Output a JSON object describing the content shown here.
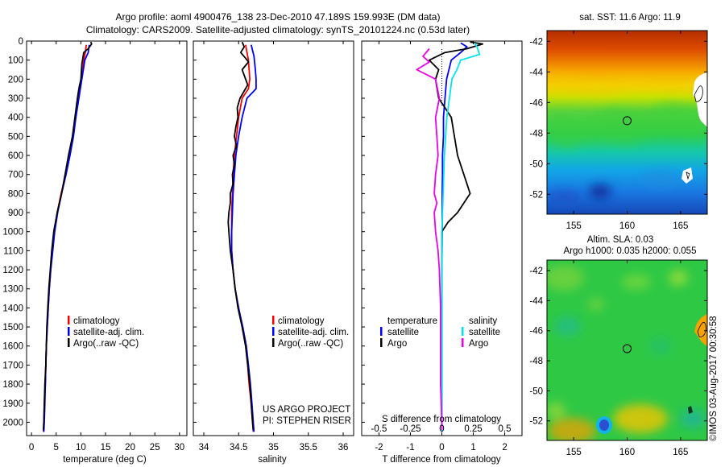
{
  "header": {
    "line1": "Argo profile: aoml 4900476_138 23-Dec-2010 47.189S 159.993E (DM data)",
    "line2": "Climatology: CARS2009. Satellite-adjusted climatology: synTS_20101224.nc (0.53d later)"
  },
  "colors": {
    "climatology": "#ff0000",
    "satellite": "#0000ff",
    "argo": "#000000",
    "satellite_s": "#00e5ee",
    "argo_s": "#ee00ee"
  },
  "credits": {
    "project": "US ARGO PROJECT",
    "pi": "PI: STEPHEN RISER",
    "stamp": "©IMOS 03-Aug-2017 00:30:58"
  },
  "chart_data": [
    {
      "type": "line",
      "xlabel": "temperature (deg C)",
      "xlim": [
        -1,
        31.5
      ],
      "xticks": [
        0,
        5,
        10,
        15,
        20,
        25,
        30
      ],
      "ylim": [
        2070,
        0
      ],
      "yticks": [
        0,
        100,
        200,
        300,
        400,
        500,
        600,
        700,
        800,
        900,
        1000,
        1100,
        1200,
        1300,
        1400,
        1500,
        1600,
        1700,
        1800,
        1900,
        2000
      ],
      "legend": [
        "climatology",
        "satellite-adj. clim.",
        "Argo(..raw -QC)"
      ],
      "series": [
        {
          "name": "climatology",
          "color": "#ff0000",
          "points": [
            [
              11.1,
              20
            ],
            [
              10.9,
              60
            ],
            [
              10.6,
              100
            ],
            [
              10.1,
              200
            ],
            [
              9.5,
              300
            ],
            [
              8.9,
              400
            ],
            [
              8.4,
              500
            ],
            [
              7.7,
              600
            ],
            [
              6.9,
              700
            ],
            [
              6.0,
              800
            ],
            [
              5.2,
              900
            ],
            [
              4.6,
              1000
            ],
            [
              4.2,
              1100
            ],
            [
              3.9,
              1200
            ],
            [
              3.6,
              1300
            ],
            [
              3.4,
              1400
            ],
            [
              3.2,
              1500
            ],
            [
              3.0,
              1600
            ],
            [
              2.9,
              1700
            ],
            [
              2.8,
              1800
            ],
            [
              2.6,
              1900
            ],
            [
              2.5,
              2000
            ],
            [
              2.4,
              2050
            ]
          ]
        },
        {
          "name": "satellite-adj. clim.",
          "color": "#0000ff",
          "points": [
            [
              11.7,
              20
            ],
            [
              11.5,
              60
            ],
            [
              10.8,
              100
            ],
            [
              10.2,
              200
            ],
            [
              9.6,
              300
            ],
            [
              9.0,
              400
            ],
            [
              8.5,
              500
            ],
            [
              7.8,
              600
            ],
            [
              7.0,
              700
            ],
            [
              6.1,
              800
            ],
            [
              5.3,
              900
            ],
            [
              4.7,
              1000
            ],
            [
              4.3,
              1100
            ],
            [
              3.9,
              1200
            ],
            [
              3.6,
              1300
            ],
            [
              3.4,
              1400
            ],
            [
              3.2,
              1500
            ],
            [
              3.0,
              1600
            ],
            [
              2.9,
              1700
            ],
            [
              2.8,
              1800
            ],
            [
              2.7,
              1900
            ],
            [
              2.6,
              2000
            ],
            [
              2.5,
              2050
            ]
          ]
        },
        {
          "name": "Argo(..raw -QC)",
          "color": "#000000",
          "points": [
            [
              12.0,
              5
            ],
            [
              12.2,
              15
            ],
            [
              11.5,
              40
            ],
            [
              10.6,
              60
            ],
            [
              10.2,
              120
            ],
            [
              10.0,
              200
            ],
            [
              9.6,
              250
            ],
            [
              9.3,
              300
            ],
            [
              8.8,
              400
            ],
            [
              8.3,
              500
            ],
            [
              7.5,
              600
            ],
            [
              6.8,
              700
            ],
            [
              6.1,
              800
            ],
            [
              5.2,
              900
            ],
            [
              4.5,
              1000
            ],
            [
              4.1,
              1100
            ],
            [
              3.8,
              1200
            ],
            [
              3.5,
              1300
            ],
            [
              3.3,
              1400
            ],
            [
              3.1,
              1500
            ],
            [
              3.0,
              1600
            ],
            [
              2.9,
              1700
            ],
            [
              2.7,
              1800
            ],
            [
              2.6,
              1900
            ],
            [
              2.5,
              2000
            ],
            [
              2.4,
              2040
            ]
          ]
        }
      ]
    },
    {
      "type": "line",
      "xlabel": "salinity",
      "xlim": [
        33.85,
        36.15
      ],
      "xticks": [
        34,
        34.5,
        35,
        35.5,
        36
      ],
      "ylim": [
        2070,
        0
      ],
      "legend": [
        "climatology",
        "satellite-adj. clim.",
        "Argo(..raw -QC)"
      ],
      "series": [
        {
          "name": "climatology",
          "color": "#ff0000",
          "points": [
            [
              34.6,
              20
            ],
            [
              34.62,
              60
            ],
            [
              34.64,
              100
            ],
            [
              34.66,
              200
            ],
            [
              34.64,
              250
            ],
            [
              34.55,
              300
            ],
            [
              34.5,
              400
            ],
            [
              34.47,
              500
            ],
            [
              34.44,
              600
            ],
            [
              34.42,
              700
            ],
            [
              34.41,
              800
            ],
            [
              34.4,
              900
            ],
            [
              34.4,
              1000
            ],
            [
              34.4,
              1100
            ],
            [
              34.42,
              1200
            ],
            [
              34.45,
              1300
            ],
            [
              34.5,
              1400
            ],
            [
              34.55,
              1500
            ],
            [
              34.6,
              1600
            ],
            [
              34.63,
              1700
            ],
            [
              34.65,
              1800
            ],
            [
              34.68,
              1900
            ],
            [
              34.7,
              2000
            ],
            [
              34.71,
              2050
            ]
          ]
        },
        {
          "name": "satellite-adj. clim.",
          "color": "#0000ff",
          "points": [
            [
              34.68,
              20
            ],
            [
              34.72,
              80
            ],
            [
              34.74,
              150
            ],
            [
              34.75,
              200
            ],
            [
              34.75,
              250
            ],
            [
              34.62,
              300
            ],
            [
              34.55,
              400
            ],
            [
              34.5,
              500
            ],
            [
              34.46,
              600
            ],
            [
              34.44,
              700
            ],
            [
              34.42,
              800
            ],
            [
              34.41,
              900
            ],
            [
              34.4,
              1000
            ],
            [
              34.4,
              1100
            ],
            [
              34.42,
              1200
            ],
            [
              34.45,
              1300
            ],
            [
              34.5,
              1400
            ],
            [
              34.56,
              1500
            ],
            [
              34.61,
              1600
            ],
            [
              34.64,
              1700
            ],
            [
              34.67,
              1800
            ],
            [
              34.69,
              1900
            ],
            [
              34.71,
              2000
            ],
            [
              34.72,
              2050
            ]
          ]
        },
        {
          "name": "Argo(..raw -QC)",
          "color": "#000000",
          "points": [
            [
              34.55,
              5
            ],
            [
              34.58,
              30
            ],
            [
              34.53,
              60
            ],
            [
              34.6,
              90
            ],
            [
              34.64,
              110
            ],
            [
              34.55,
              150
            ],
            [
              34.6,
              200
            ],
            [
              34.63,
              230
            ],
            [
              34.52,
              300
            ],
            [
              34.48,
              350
            ],
            [
              34.49,
              400
            ],
            [
              34.46,
              450
            ],
            [
              34.44,
              500
            ],
            [
              34.47,
              550
            ],
            [
              34.42,
              600
            ],
            [
              34.44,
              650
            ],
            [
              34.41,
              700
            ],
            [
              34.42,
              750
            ],
            [
              34.38,
              800
            ],
            [
              34.38,
              850
            ],
            [
              34.36,
              900
            ],
            [
              34.35,
              950
            ],
            [
              34.36,
              1000
            ],
            [
              34.37,
              1050
            ],
            [
              34.38,
              1100
            ],
            [
              34.4,
              1150
            ],
            [
              34.42,
              1200
            ],
            [
              34.45,
              1300
            ],
            [
              34.49,
              1400
            ],
            [
              34.55,
              1500
            ],
            [
              34.6,
              1600
            ],
            [
              34.63,
              1700
            ],
            [
              34.66,
              1800
            ],
            [
              34.68,
              1900
            ],
            [
              34.7,
              2000
            ],
            [
              34.71,
              2040
            ]
          ]
        }
      ]
    },
    {
      "type": "line",
      "xlabel": "T difference from climatology",
      "xlabel_top": "S difference from climatology",
      "xlim": [
        -2.55,
        2.55
      ],
      "xticks": [
        -2,
        -1,
        0,
        1,
        2
      ],
      "xticks_top": [
        "-0.5",
        "-0.25",
        "0",
        "0.25",
        "0.5"
      ],
      "ylim": [
        2070,
        0
      ],
      "legend_t_title": "temperature",
      "legend_s_title": "salinity",
      "legend_t": [
        "satellite",
        "Argo"
      ],
      "legend_s": [
        "satellite",
        "Argo"
      ],
      "series": [
        {
          "name": "satellite",
          "group": "temperature",
          "color": "#0000ff",
          "points": [
            [
              0.6,
              10
            ],
            [
              0.8,
              30
            ],
            [
              0.6,
              60
            ],
            [
              0.3,
              100
            ],
            [
              0.15,
              200
            ],
            [
              0.1,
              300
            ],
            [
              0.05,
              400
            ],
            [
              0.05,
              500
            ],
            [
              0.02,
              600
            ],
            [
              0.02,
              700
            ],
            [
              0.01,
              800
            ],
            [
              0.01,
              900
            ],
            [
              0.01,
              1000
            ],
            [
              0.0,
              1200
            ],
            [
              0.0,
              1500
            ],
            [
              0.0,
              1800
            ],
            [
              0.0,
              2050
            ]
          ]
        },
        {
          "name": "Argo",
          "group": "temperature",
          "color": "#000000",
          "points": [
            [
              0.9,
              5
            ],
            [
              1.3,
              15
            ],
            [
              0.8,
              40
            ],
            [
              0.1,
              60
            ],
            [
              -0.4,
              100
            ],
            [
              -0.1,
              150
            ],
            [
              -0.2,
              200
            ],
            [
              -0.15,
              250
            ],
            [
              -0.1,
              300
            ],
            [
              0.3,
              400
            ],
            [
              0.4,
              500
            ],
            [
              0.5,
              600
            ],
            [
              0.7,
              700
            ],
            [
              0.9,
              800
            ],
            [
              0.5,
              900
            ],
            [
              0.2,
              950
            ],
            [
              0.0,
              1000
            ],
            [
              0.0,
              1200
            ],
            [
              0.0,
              1500
            ],
            [
              0.0,
              1800
            ],
            [
              0.0,
              2040
            ]
          ]
        },
        {
          "name": "satellite",
          "group": "salinity",
          "color": "#00e5ee",
          "points": [
            [
              0.26,
              10
            ],
            [
              0.28,
              30
            ],
            [
              0.3,
              70
            ],
            [
              0.15,
              100
            ],
            [
              0.12,
              150
            ],
            [
              0.08,
              200
            ],
            [
              0.06,
              300
            ],
            [
              0.04,
              400
            ],
            [
              0.03,
              500
            ],
            [
              0.02,
              600
            ],
            [
              0.01,
              800
            ],
            [
              0.0,
              1000
            ],
            [
              0.0,
              1500
            ],
            [
              0.0,
              2050
            ]
          ]
        },
        {
          "name": "Argo",
          "group": "salinity",
          "color": "#ee00ee",
          "points": [
            [
              -0.1,
              40
            ],
            [
              -0.15,
              80
            ],
            [
              -0.1,
              110
            ],
            [
              -0.2,
              150
            ],
            [
              -0.05,
              200
            ],
            [
              -0.02,
              300
            ],
            [
              -0.05,
              400
            ],
            [
              -0.04,
              500
            ],
            [
              -0.03,
              600
            ],
            [
              -0.05,
              700
            ],
            [
              -0.06,
              800
            ],
            [
              -0.04,
              850
            ],
            [
              -0.06,
              900
            ],
            [
              -0.05,
              1000
            ],
            [
              -0.03,
              1100
            ],
            [
              -0.02,
              1200
            ],
            [
              -0.01,
              1400
            ],
            [
              -0.01,
              1600
            ],
            [
              -0.01,
              1800
            ],
            [
              0.0,
              2000
            ],
            [
              0.0,
              2040
            ]
          ]
        }
      ]
    },
    {
      "type": "heatmap",
      "title": "sat. SST: 11.6  Argo: 11.9",
      "xlim": [
        152.5,
        167.5
      ],
      "ylim": [
        -53.3,
        -41.3
      ],
      "xticks": [
        155,
        160,
        165
      ],
      "yticks": [
        -42,
        -44,
        -46,
        -48,
        -50,
        -52
      ],
      "marker": [
        160.0,
        -47.19
      ]
    },
    {
      "type": "heatmap",
      "title": "Altim. SLA: 0.03",
      "subtitle": "Argo h1000: 0.035 h2000: 0.055",
      "xlim": [
        152.5,
        167.5
      ],
      "ylim": [
        -53.3,
        -41.3
      ],
      "xticks": [
        155,
        160,
        165
      ],
      "yticks": [
        -42,
        -44,
        -46,
        -48,
        -50,
        -52
      ],
      "marker": [
        160.0,
        -47.19
      ]
    }
  ]
}
